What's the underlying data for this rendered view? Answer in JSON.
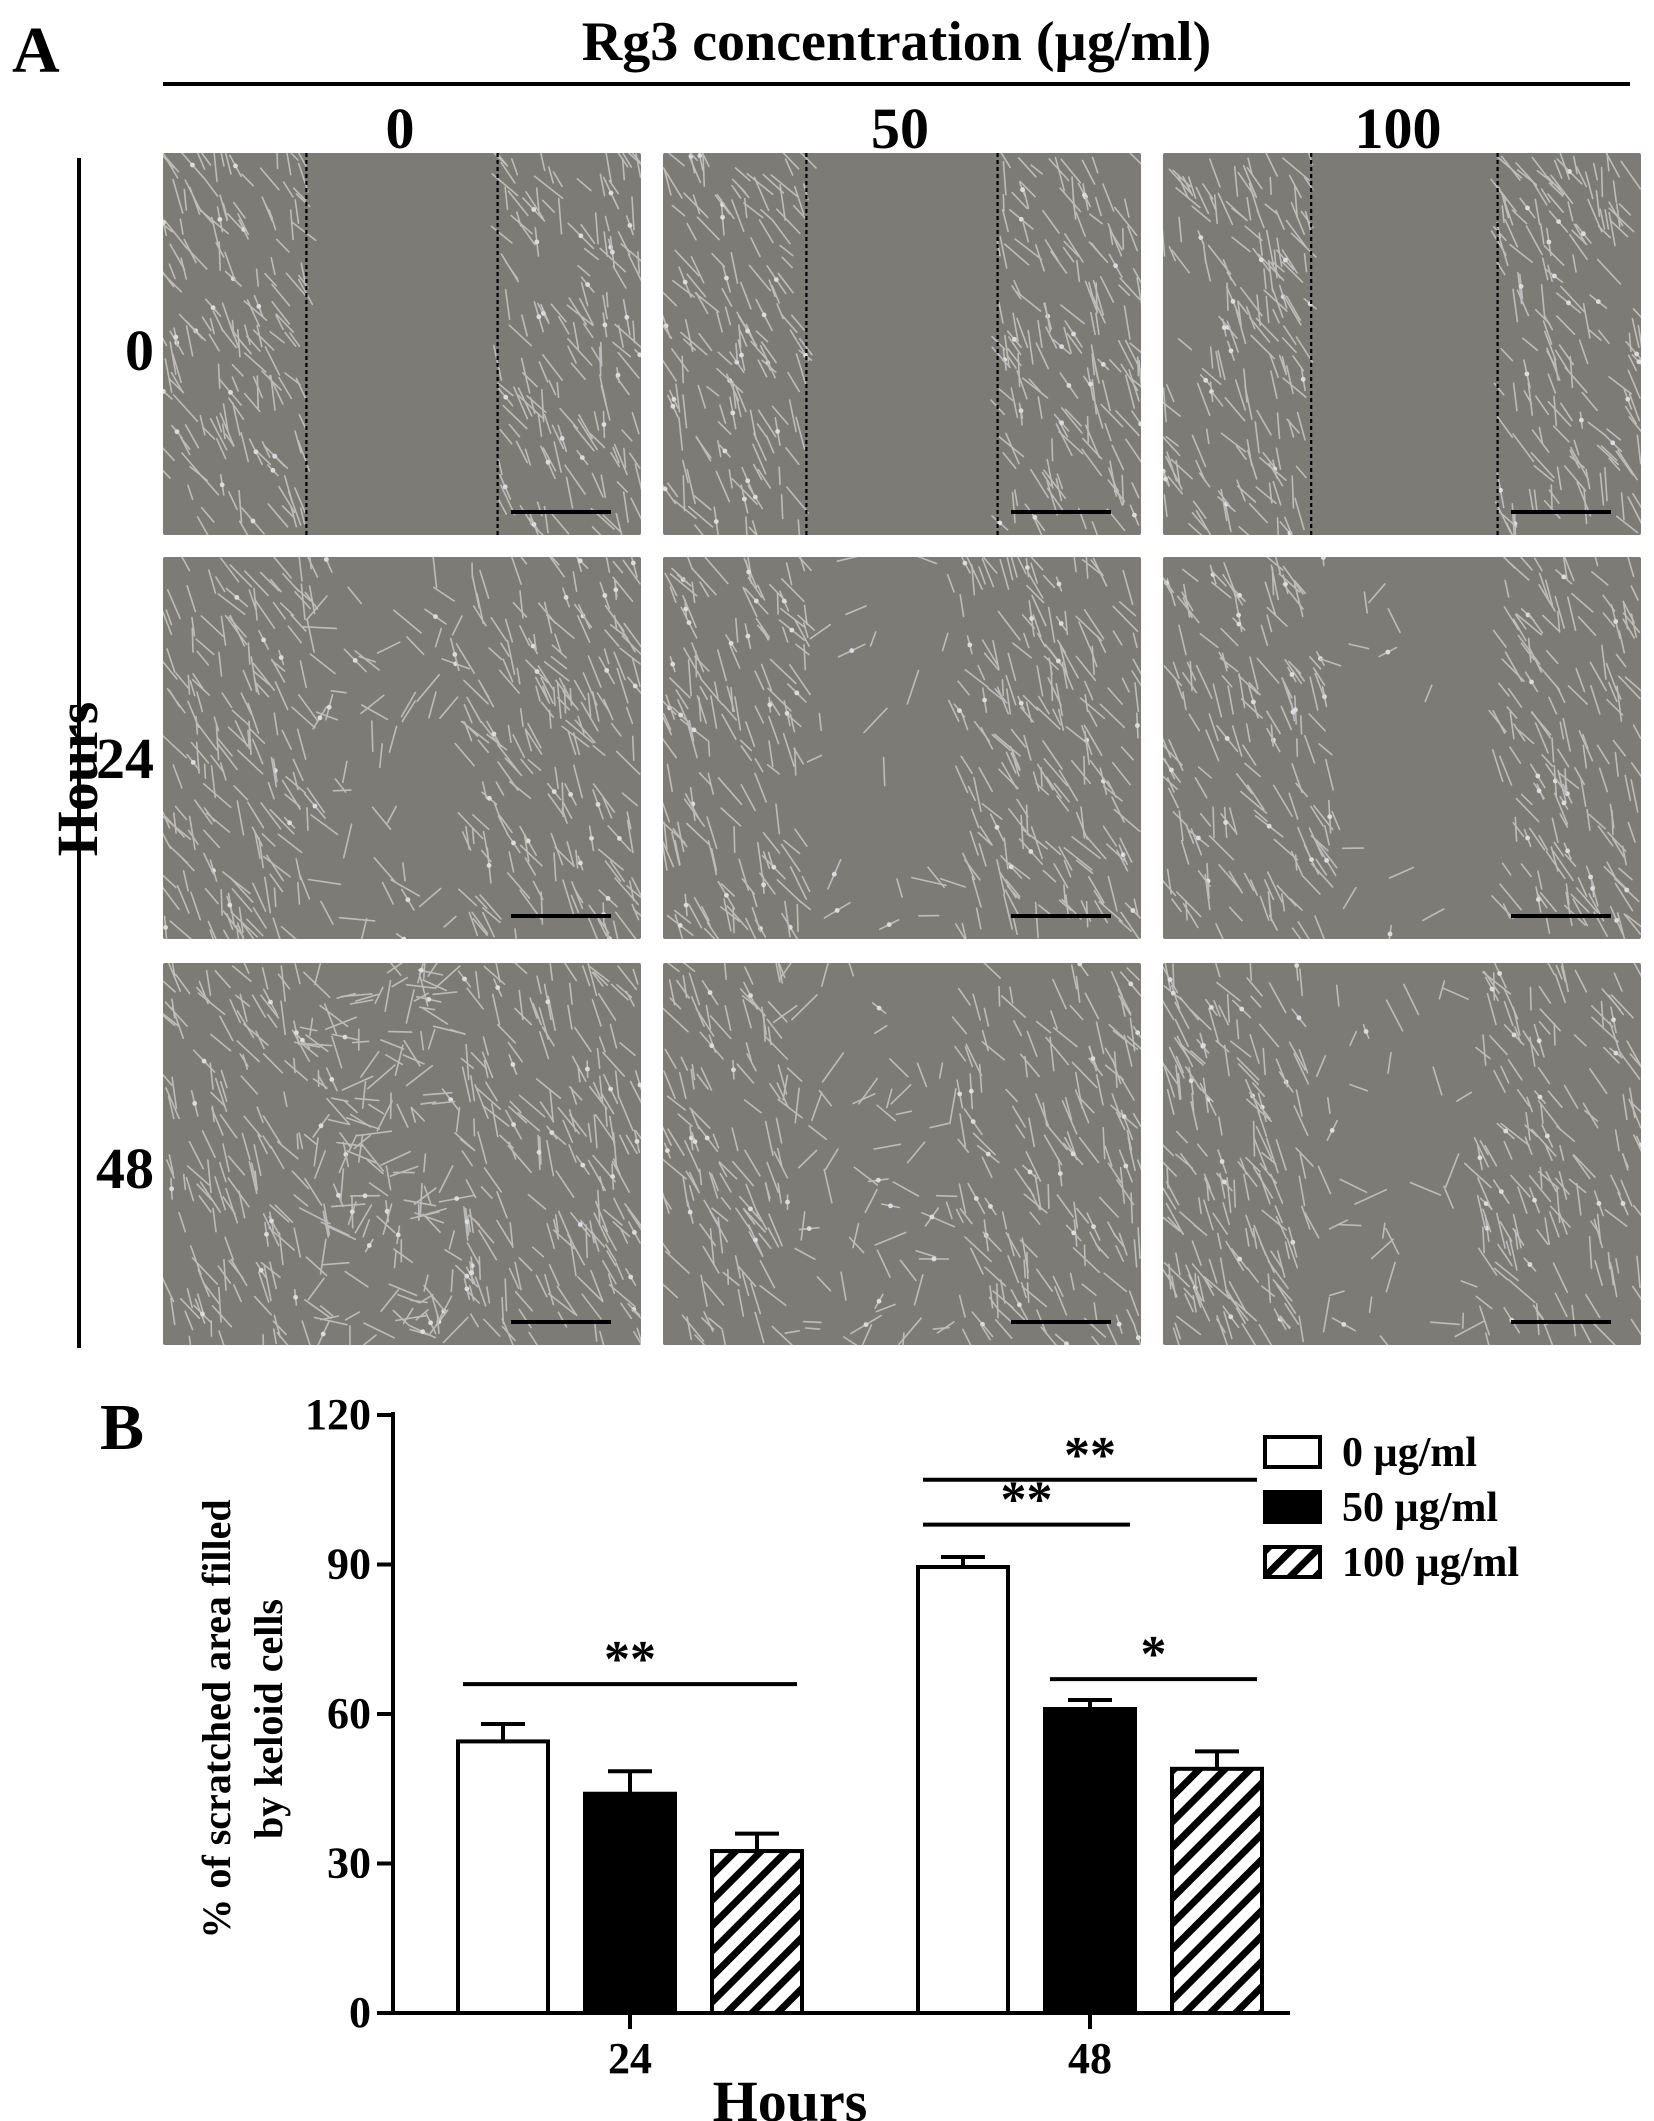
{
  "figure": {
    "panel_a_label": "A",
    "panel_b_label": "B"
  },
  "panel_a": {
    "header": "Rg3 concentration (µg/ml)",
    "column_labels": [
      "0",
      "50",
      "100"
    ],
    "row_axis_label": "Hours",
    "row_labels": [
      "0",
      "24",
      "48"
    ],
    "image_description_icon": "phase-contrast-micrograph",
    "colors": {
      "background_gray": "#7d7b76",
      "cell": "#c8c9c6",
      "scale_bar": "#000000"
    }
  },
  "chart_data": {
    "type": "bar",
    "categories": [
      "24",
      "48"
    ],
    "series": [
      {
        "name": "0 µg/ml",
        "values": [
          54.5,
          89.5
        ],
        "errors": [
          3.5,
          2
        ],
        "pattern": "hollow"
      },
      {
        "name": "50 µg/ml",
        "values": [
          44,
          61
        ],
        "errors": [
          4.5,
          1.8
        ],
        "pattern": "solid"
      },
      {
        "name": "100 µg/ml",
        "values": [
          32.5,
          49
        ],
        "errors": [
          3.5,
          3.5
        ],
        "pattern": "hatched"
      }
    ],
    "title": "",
    "xlabel": "Hours",
    "ylabel": "% of scratched area filled by keloid cells",
    "ylabel_lines": [
      "% of scratched area filled",
      "by keloid cells"
    ],
    "ylim": [
      0,
      120
    ],
    "yticks": [
      0,
      30,
      60,
      90,
      120
    ],
    "grid": false,
    "legend_position": "top-right",
    "significance": [
      {
        "category": "24",
        "from_series": 0,
        "to_series": 2,
        "label": "**"
      },
      {
        "category": "48",
        "from_series": 0,
        "to_series": 2,
        "label": "**"
      },
      {
        "category": "48",
        "from_series": 0,
        "to_series": 1,
        "label": "**"
      },
      {
        "category": "48",
        "from_series": 1,
        "to_series": 2,
        "label": "*"
      }
    ]
  }
}
